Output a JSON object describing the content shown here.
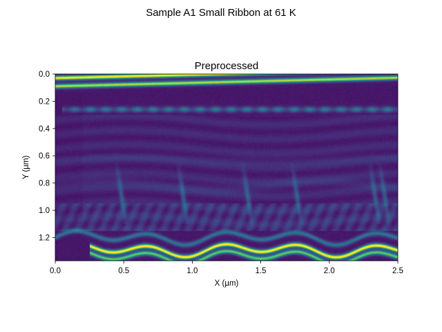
{
  "chart_data": {
    "type": "heatmap",
    "suptitle": "Sample A1 Small Ribbon at 61 K",
    "title": "Preprocessed",
    "xlabel": "X (µm)",
    "ylabel": "Y (µm)",
    "xlim": [
      0.0,
      2.5
    ],
    "ylim": [
      0.0,
      1.37
    ],
    "y_inverted": true,
    "xticks": [
      "0.0",
      "0.5",
      "1.0",
      "1.5",
      "2.0",
      "2.5"
    ],
    "yticks": [
      "0.0",
      "0.2",
      "0.4",
      "0.6",
      "0.8",
      "1.0",
      "1.2"
    ],
    "colormap": "viridis",
    "grid": false,
    "bright_bands": [
      {
        "y": 0.03,
        "x_range": [
          0.0,
          2.5
        ],
        "intensity": 0.95
      },
      {
        "y": 0.09,
        "x_range": [
          0.0,
          2.5
        ],
        "intensity": 0.85
      },
      {
        "y": 0.26,
        "x_range": [
          0.1,
          2.5
        ],
        "intensity": 0.45
      },
      {
        "y": 1.2,
        "x_range": [
          0.0,
          2.5
        ],
        "intensity": 0.4
      },
      {
        "y": 1.29,
        "x_range": [
          0.3,
          2.5
        ],
        "intensity": 1.0
      },
      {
        "y": 1.34,
        "x_range": [
          0.3,
          2.5
        ],
        "intensity": 0.75
      }
    ]
  }
}
